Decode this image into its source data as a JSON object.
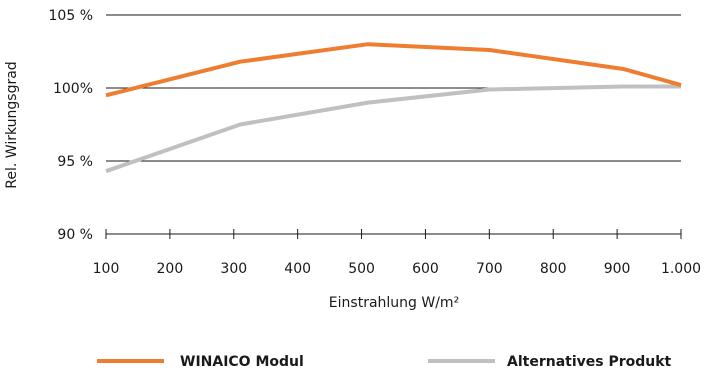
{
  "chart_data": {
    "type": "line",
    "xlabel": "Einstrahlung W/m²",
    "ylabel": "Rel. Wirkungsgrad",
    "xlim": [
      100,
      1000
    ],
    "ylim": [
      90,
      105
    ],
    "x_ticks": [
      100,
      200,
      300,
      400,
      500,
      600,
      700,
      800,
      900,
      1000
    ],
    "x_tick_labels": [
      "100",
      "200",
      "300",
      "400",
      "500",
      "600",
      "700",
      "800",
      "900",
      "1.000"
    ],
    "y_ticks": [
      90,
      95,
      100,
      105
    ],
    "y_tick_labels": [
      "90 %",
      "95 %",
      "100%",
      "105 %"
    ],
    "grid": "horizontal",
    "legend_position": "bottom",
    "series": [
      {
        "name": "WINAICO Modul",
        "color": "#ee7d31",
        "x": [
          100,
          310,
          510,
          700,
          910,
          1000
        ],
        "y": [
          99.5,
          101.8,
          103.0,
          102.6,
          101.3,
          100.2
        ]
      },
      {
        "name": "Alternatives Produkt",
        "color": "#c0c0c0",
        "x": [
          100,
          310,
          510,
          700,
          910,
          1000
        ],
        "y": [
          94.3,
          97.5,
          99.0,
          99.9,
          100.1,
          100.1
        ]
      }
    ]
  }
}
